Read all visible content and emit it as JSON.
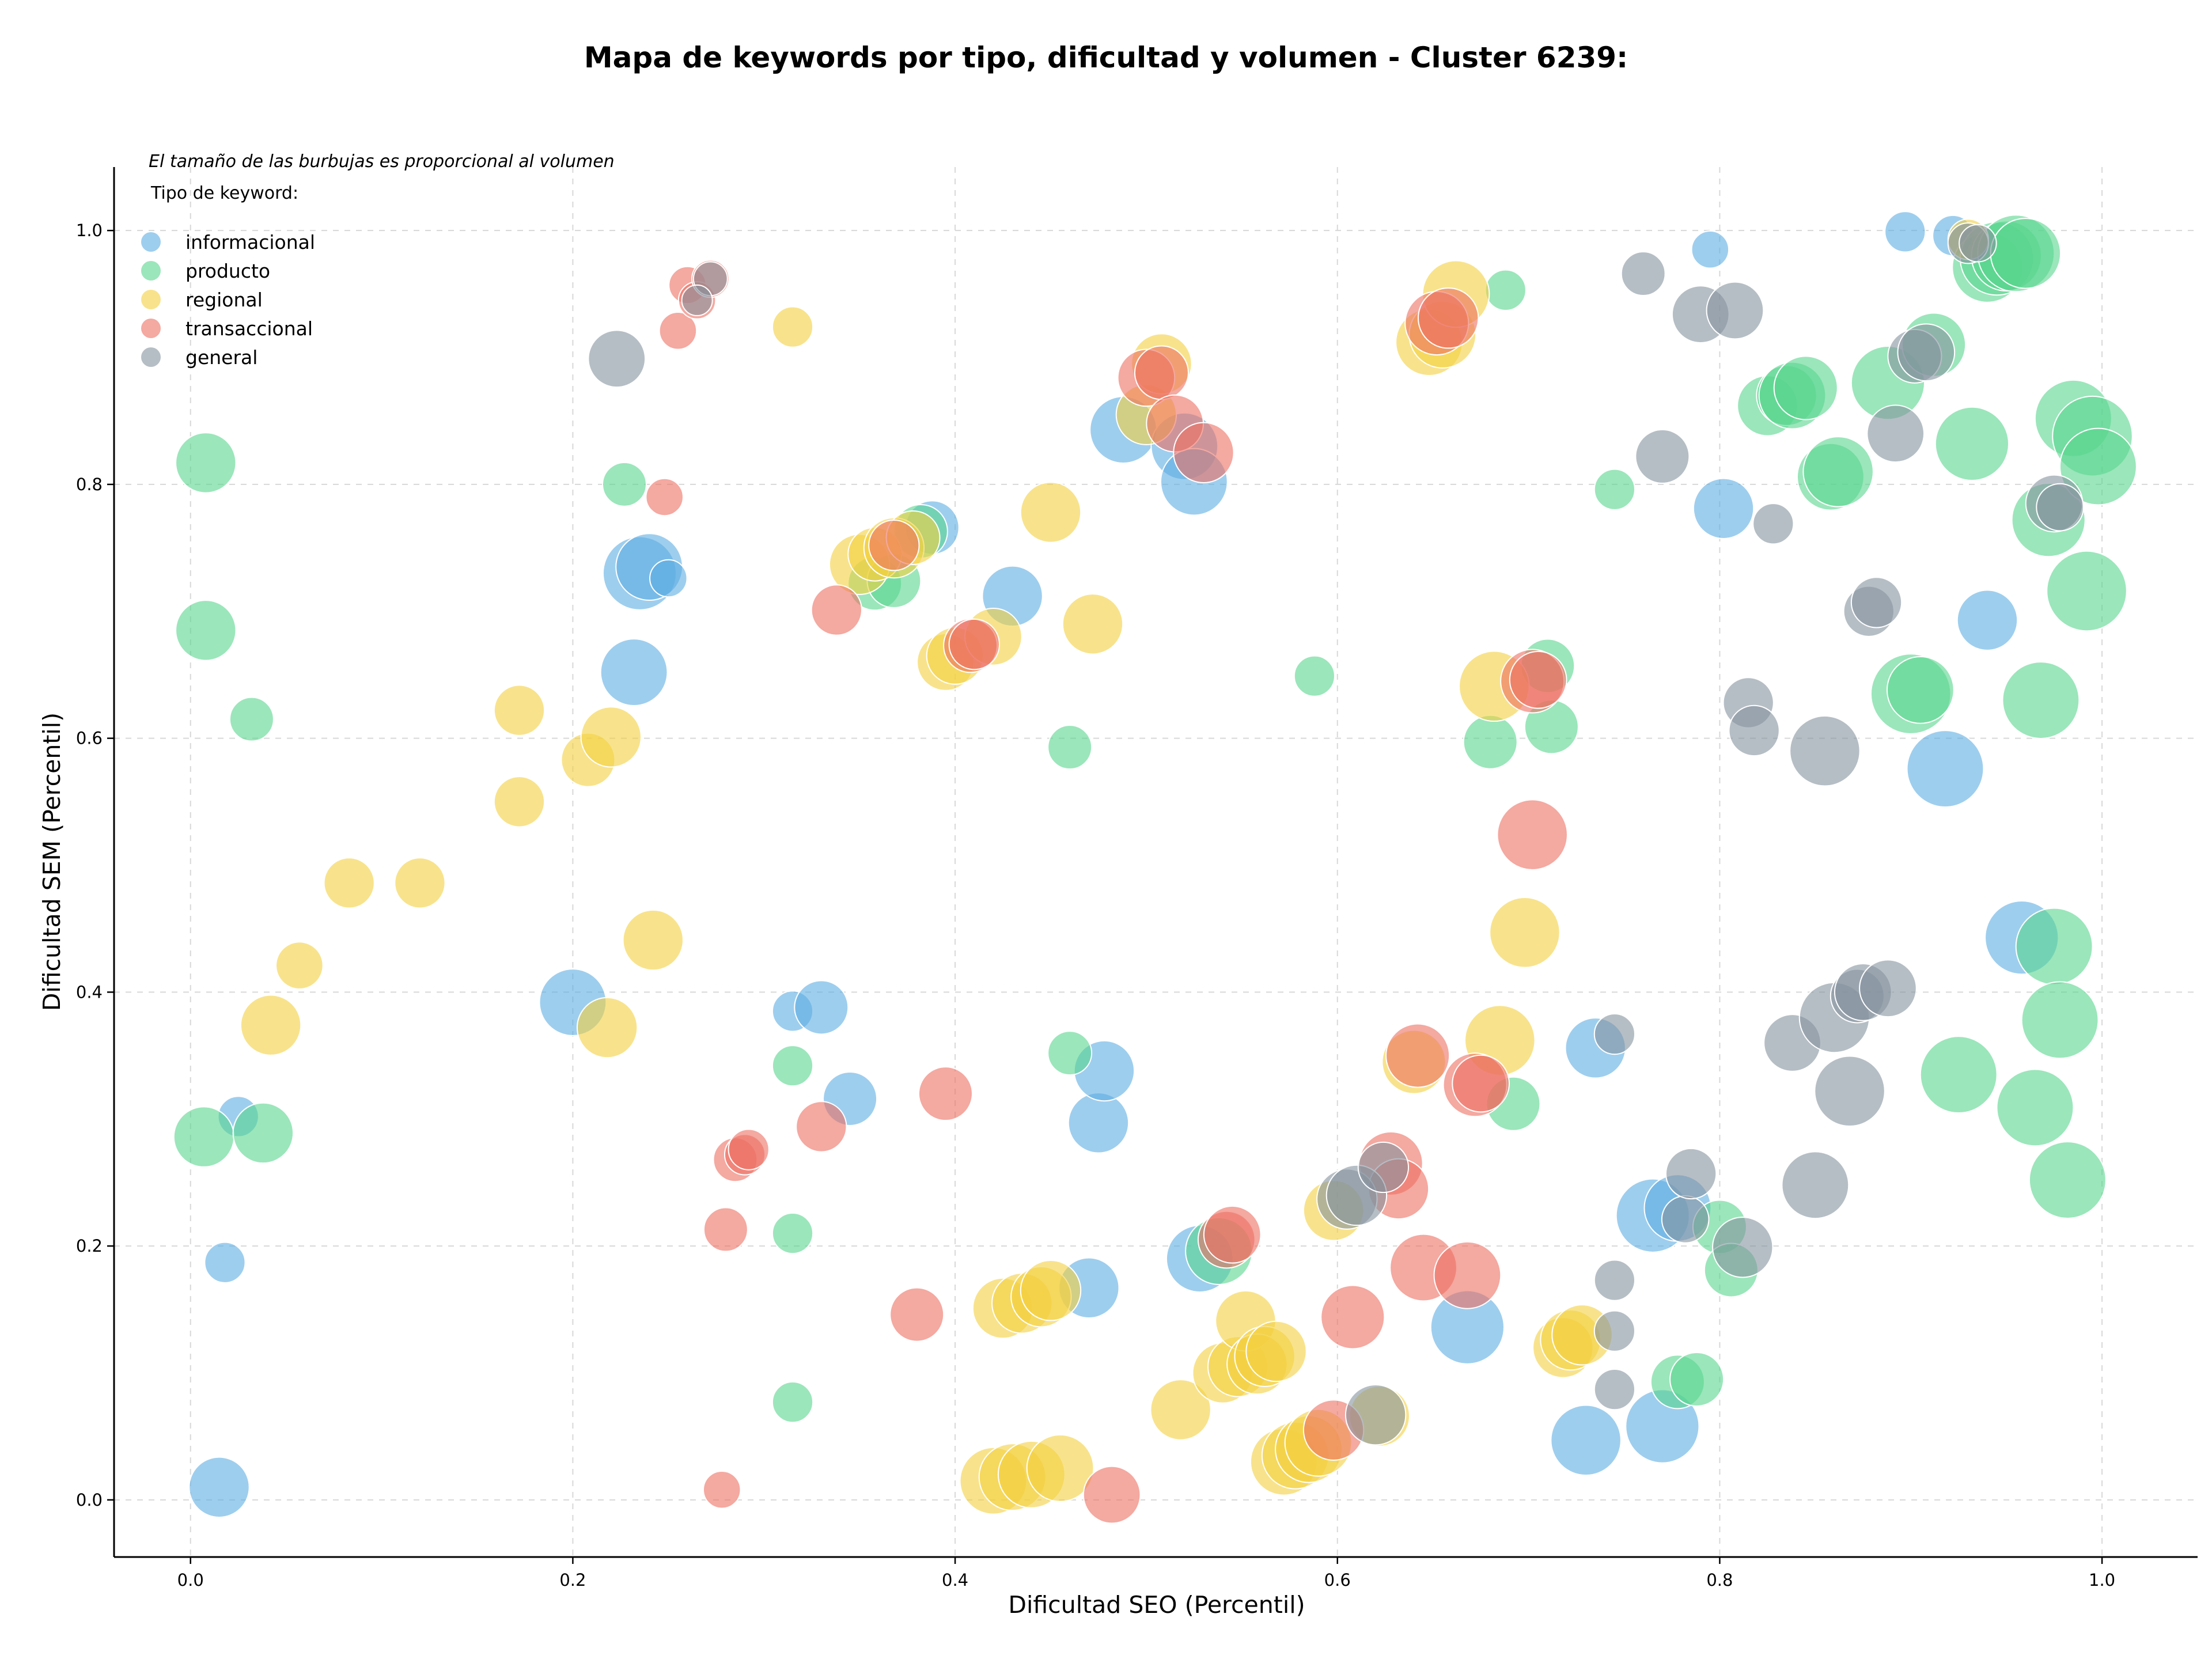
{
  "chart_data": {
    "type": "scatter",
    "title": "Mapa de keywords por tipo, dificultad y volumen - Cluster 6239:",
    "xlabel": "Dificultad SEO (Percentil)",
    "ylabel": "Dificultad SEM (Percentil)",
    "xlim": [
      -0.04,
      1.05
    ],
    "ylim": [
      -0.045,
      1.05
    ],
    "xticks": [
      "0.0",
      "0.2",
      "0.4",
      "0.6",
      "0.8",
      "1.0"
    ],
    "yticks": [
      "0.0",
      "0.2",
      "0.4",
      "0.6",
      "0.8",
      "1.0"
    ],
    "grid": true,
    "annotation": "El tamaño de las burbujas es proporcional al volumen",
    "legend_title": "Tipo de keyword:",
    "legend_position": "top-left",
    "series": [
      {
        "name": "informacional",
        "color": "#5DADE2",
        "points": [
          [
            0.015,
            0.01,
            0.6
          ],
          [
            0.018,
            0.187,
            0.3
          ],
          [
            0.025,
            0.302,
            0.3
          ],
          [
            0.2,
            0.392,
            0.7
          ],
          [
            0.232,
            0.652,
            0.7
          ],
          [
            0.235,
            0.73,
            0.8
          ],
          [
            0.24,
            0.735,
            0.7
          ],
          [
            0.25,
            0.726,
            0.25
          ],
          [
            0.315,
            0.385,
            0.3
          ],
          [
            0.33,
            0.388,
            0.5
          ],
          [
            0.345,
            0.316,
            0.5
          ],
          [
            0.388,
            0.766,
            0.5
          ],
          [
            0.43,
            0.712,
            0.6
          ],
          [
            0.47,
            0.167,
            0.6
          ],
          [
            0.475,
            0.297,
            0.6
          ],
          [
            0.478,
            0.338,
            0.6
          ],
          [
            0.488,
            0.843,
            0.7
          ],
          [
            0.52,
            0.83,
            0.7
          ],
          [
            0.525,
            0.802,
            0.7
          ],
          [
            0.528,
            0.19,
            0.7
          ],
          [
            0.668,
            0.136,
            0.8
          ],
          [
            0.73,
            0.047,
            0.75
          ],
          [
            0.735,
            0.356,
            0.6
          ],
          [
            0.765,
            0.224,
            0.8
          ],
          [
            0.77,
            0.058,
            0.8
          ],
          [
            0.778,
            0.23,
            0.7
          ],
          [
            0.795,
            0.985,
            0.25
          ],
          [
            0.802,
            0.781,
            0.6
          ],
          [
            0.897,
            0.999,
            0.3
          ],
          [
            0.918,
            0.576,
            0.85
          ],
          [
            0.922,
            0.996,
            0.3
          ],
          [
            0.94,
            0.693,
            0.6
          ],
          [
            0.958,
            0.443,
            0.8
          ]
        ]
      },
      {
        "name": "producto",
        "color": "#58D68D",
        "points": [
          [
            0.007,
            0.286,
            0.6
          ],
          [
            0.008,
            0.817,
            0.6
          ],
          [
            0.008,
            0.685,
            0.6
          ],
          [
            0.032,
            0.615,
            0.35
          ],
          [
            0.038,
            0.289,
            0.6
          ],
          [
            0.227,
            0.8,
            0.35
          ],
          [
            0.315,
            0.342,
            0.3
          ],
          [
            0.315,
            0.21,
            0.3
          ],
          [
            0.315,
            0.077,
            0.3
          ],
          [
            0.358,
            0.722,
            0.5
          ],
          [
            0.368,
            0.724,
            0.5
          ],
          [
            0.382,
            0.763,
            0.5
          ],
          [
            0.46,
            0.593,
            0.35
          ],
          [
            0.46,
            0.352,
            0.35
          ],
          [
            0.538,
            0.196,
            0.7
          ],
          [
            0.588,
            0.649,
            0.3
          ],
          [
            0.68,
            0.597,
            0.5
          ],
          [
            0.688,
            0.953,
            0.3
          ],
          [
            0.692,
            0.312,
            0.5
          ],
          [
            0.71,
            0.657,
            0.5
          ],
          [
            0.712,
            0.609,
            0.5
          ],
          [
            0.745,
            0.796,
            0.3
          ],
          [
            0.778,
            0.093,
            0.5
          ],
          [
            0.788,
            0.095,
            0.5
          ],
          [
            0.8,
            0.215,
            0.5
          ],
          [
            0.806,
            0.181,
            0.5
          ],
          [
            0.825,
            0.862,
            0.6
          ],
          [
            0.835,
            0.87,
            0.6
          ],
          [
            0.838,
            0.87,
            0.7
          ],
          [
            0.845,
            0.876,
            0.65
          ],
          [
            0.858,
            0.806,
            0.7
          ],
          [
            0.862,
            0.81,
            0.75
          ],
          [
            0.888,
            0.88,
            0.8
          ],
          [
            0.9,
            0.635,
            0.9
          ],
          [
            0.905,
            0.638,
            0.7
          ],
          [
            0.912,
            0.91,
            0.65
          ],
          [
            0.925,
            0.335,
            0.85
          ],
          [
            0.932,
            0.832,
            0.8
          ],
          [
            0.94,
            0.971,
            0.75
          ],
          [
            0.945,
            0.978,
            0.8
          ],
          [
            0.95,
            0.98,
            0.75
          ],
          [
            0.955,
            0.982,
            0.85
          ],
          [
            0.96,
            0.982,
            0.75
          ],
          [
            0.965,
            0.309,
            0.85
          ],
          [
            0.968,
            0.63,
            0.85
          ],
          [
            0.972,
            0.772,
            0.8
          ],
          [
            0.975,
            0.436,
            0.85
          ],
          [
            0.978,
            0.378,
            0.85
          ],
          [
            0.982,
            0.252,
            0.85
          ],
          [
            0.985,
            0.852,
            0.85
          ],
          [
            0.992,
            0.716,
            0.9
          ],
          [
            0.995,
            0.838,
            0.9
          ],
          [
            0.998,
            0.814,
            0.85
          ]
        ]
      },
      {
        "name": "regional",
        "color": "#F4D03F",
        "points": [
          [
            0.042,
            0.374,
            0.6
          ],
          [
            0.057,
            0.421,
            0.4
          ],
          [
            0.083,
            0.486,
            0.45
          ],
          [
            0.12,
            0.486,
            0.45
          ],
          [
            0.172,
            0.55,
            0.45
          ],
          [
            0.172,
            0.622,
            0.45
          ],
          [
            0.208,
            0.583,
            0.5
          ],
          [
            0.218,
            0.372,
            0.6
          ],
          [
            0.22,
            0.601,
            0.6
          ],
          [
            0.242,
            0.441,
            0.6
          ],
          [
            0.315,
            0.924,
            0.3
          ],
          [
            0.35,
            0.737,
            0.6
          ],
          [
            0.358,
            0.745,
            0.5
          ],
          [
            0.368,
            0.75,
            0.6
          ],
          [
            0.378,
            0.758,
            0.5
          ],
          [
            0.395,
            0.66,
            0.55
          ],
          [
            0.4,
            0.665,
            0.55
          ],
          [
            0.42,
            0.68,
            0.55
          ],
          [
            0.42,
            0.015,
            0.7
          ],
          [
            0.425,
            0.151,
            0.6
          ],
          [
            0.43,
            0.018,
            0.7
          ],
          [
            0.435,
            0.155,
            0.6
          ],
          [
            0.44,
            0.02,
            0.7
          ],
          [
            0.445,
            0.16,
            0.6
          ],
          [
            0.45,
            0.165,
            0.6
          ],
          [
            0.45,
            0.778,
            0.6
          ],
          [
            0.455,
            0.025,
            0.7
          ],
          [
            0.472,
            0.69,
            0.6
          ],
          [
            0.5,
            0.855,
            0.6
          ],
          [
            0.508,
            0.895,
            0.6
          ],
          [
            0.518,
            0.071,
            0.6
          ],
          [
            0.54,
            0.1,
            0.6
          ],
          [
            0.548,
            0.105,
            0.6
          ],
          [
            0.552,
            0.141,
            0.6
          ],
          [
            0.558,
            0.107,
            0.6
          ],
          [
            0.562,
            0.113,
            0.6
          ],
          [
            0.568,
            0.117,
            0.6
          ],
          [
            0.572,
            0.03,
            0.7
          ],
          [
            0.578,
            0.035,
            0.7
          ],
          [
            0.585,
            0.04,
            0.7
          ],
          [
            0.59,
            0.045,
            0.7
          ],
          [
            0.598,
            0.228,
            0.6
          ],
          [
            0.622,
            0.066,
            0.6
          ],
          [
            0.64,
            0.345,
            0.65
          ],
          [
            0.648,
            0.912,
            0.7
          ],
          [
            0.655,
            0.918,
            0.7
          ],
          [
            0.662,
            0.95,
            0.7
          ],
          [
            0.682,
            0.641,
            0.75
          ],
          [
            0.685,
            0.362,
            0.75
          ],
          [
            0.698,
            0.447,
            0.75
          ],
          [
            0.718,
            0.12,
            0.6
          ],
          [
            0.722,
            0.126,
            0.6
          ],
          [
            0.728,
            0.13,
            0.6
          ],
          [
            0.93,
            0.993,
            0.3
          ]
        ]
      },
      {
        "name": "transaccional",
        "color": "#EC7063",
        "points": [
          [
            0.248,
            0.79,
            0.25
          ],
          [
            0.255,
            0.921,
            0.25
          ],
          [
            0.26,
            0.957,
            0.25
          ],
          [
            0.265,
            0.945,
            0.25
          ],
          [
            0.272,
            0.962,
            0.25
          ],
          [
            0.278,
            0.008,
            0.25
          ],
          [
            0.28,
            0.213,
            0.35
          ],
          [
            0.285,
            0.268,
            0.35
          ],
          [
            0.29,
            0.272,
            0.3
          ],
          [
            0.292,
            0.276,
            0.3
          ],
          [
            0.33,
            0.294,
            0.45
          ],
          [
            0.338,
            0.701,
            0.45
          ],
          [
            0.38,
            0.146,
            0.5
          ],
          [
            0.395,
            0.32,
            0.5
          ],
          [
            0.368,
            0.752,
            0.45
          ],
          [
            0.408,
            0.673,
            0.5
          ],
          [
            0.41,
            0.674,
            0.45
          ],
          [
            0.482,
            0.004,
            0.55
          ],
          [
            0.5,
            0.884,
            0.55
          ],
          [
            0.508,
            0.888,
            0.5
          ],
          [
            0.515,
            0.848,
            0.55
          ],
          [
            0.53,
            0.825,
            0.6
          ],
          [
            0.542,
            0.205,
            0.55
          ],
          [
            0.545,
            0.209,
            0.55
          ],
          [
            0.598,
            0.055,
            0.6
          ],
          [
            0.608,
            0.144,
            0.65
          ],
          [
            0.628,
            0.265,
            0.65
          ],
          [
            0.632,
            0.245,
            0.6
          ],
          [
            0.642,
            0.35,
            0.65
          ],
          [
            0.645,
            0.183,
            0.7
          ],
          [
            0.652,
            0.927,
            0.65
          ],
          [
            0.658,
            0.931,
            0.6
          ],
          [
            0.668,
            0.177,
            0.7
          ],
          [
            0.672,
            0.327,
            0.65
          ],
          [
            0.675,
            0.328,
            0.55
          ],
          [
            0.702,
            0.645,
            0.65
          ],
          [
            0.705,
            0.646,
            0.55
          ],
          [
            0.702,
            0.524,
            0.75
          ]
        ]
      },
      {
        "name": "general",
        "color": "#85929E",
        "points": [
          [
            0.223,
            0.899,
            0.55
          ],
          [
            0.272,
            0.962,
            0.2
          ],
          [
            0.265,
            0.945,
            0.15
          ],
          [
            0.605,
            0.237,
            0.6
          ],
          [
            0.61,
            0.24,
            0.6
          ],
          [
            0.62,
            0.067,
            0.6
          ],
          [
            0.624,
            0.262,
            0.45
          ],
          [
            0.745,
            0.367,
            0.3
          ],
          [
            0.745,
            0.173,
            0.3
          ],
          [
            0.745,
            0.133,
            0.3
          ],
          [
            0.745,
            0.087,
            0.3
          ],
          [
            0.76,
            0.966,
            0.35
          ],
          [
            0.77,
            0.822,
            0.5
          ],
          [
            0.782,
            0.221,
            0.4
          ],
          [
            0.785,
            0.257,
            0.45
          ],
          [
            0.79,
            0.934,
            0.55
          ],
          [
            0.808,
            0.937,
            0.55
          ],
          [
            0.812,
            0.199,
            0.6
          ],
          [
            0.815,
            0.628,
            0.45
          ],
          [
            0.818,
            0.606,
            0.45
          ],
          [
            0.828,
            0.769,
            0.3
          ],
          [
            0.838,
            0.36,
            0.55
          ],
          [
            0.85,
            0.248,
            0.7
          ],
          [
            0.855,
            0.59,
            0.75
          ],
          [
            0.86,
            0.38,
            0.75
          ],
          [
            0.868,
            0.322,
            0.75
          ],
          [
            0.872,
            0.397,
            0.5
          ],
          [
            0.875,
            0.4,
            0.55
          ],
          [
            0.878,
            0.7,
            0.45
          ],
          [
            0.882,
            0.707,
            0.45
          ],
          [
            0.888,
            0.403,
            0.55
          ],
          [
            0.892,
            0.84,
            0.55
          ],
          [
            0.902,
            0.901,
            0.5
          ],
          [
            0.908,
            0.904,
            0.55
          ],
          [
            0.93,
            0.99,
            0.3
          ],
          [
            0.935,
            0.99,
            0.25
          ],
          [
            0.975,
            0.785,
            0.55
          ],
          [
            0.978,
            0.782,
            0.4
          ]
        ]
      }
    ]
  }
}
